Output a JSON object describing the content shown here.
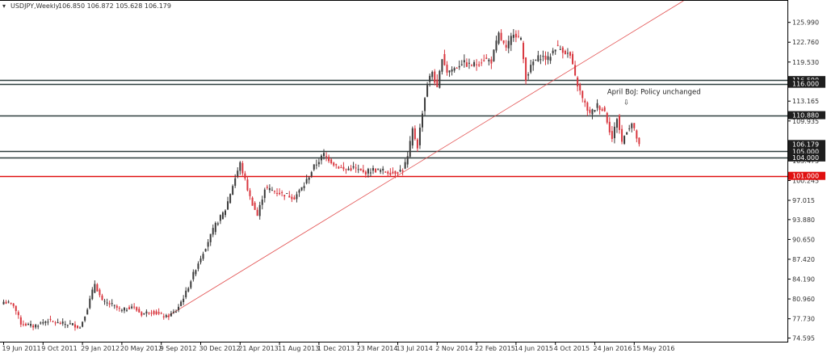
{
  "header": {
    "symbol": "USDJPY,Weekly",
    "ohlc_values": "106.850 106.872 105.628 106.179",
    "dropdown_glyph": "▾"
  },
  "colors": {
    "bull": "#3a3a3a",
    "bear": "#d9363e",
    "trendline": "#e25050",
    "level_line": "#2e3e3e",
    "support_red": "#e01010",
    "price_tag_bg": "#1e1e1e",
    "price_tag_text": "#ffffff"
  },
  "chart_data": {
    "type": "candlestick",
    "timeframe": "Weekly",
    "y_range": [
      74.0,
      129.5
    ],
    "y_ticks": [
      {
        "value": 125.99,
        "label": "125.990"
      },
      {
        "value": 122.76,
        "label": "122.760"
      },
      {
        "value": 119.53,
        "label": "119.530"
      },
      {
        "value": 113.165,
        "label": "113.165"
      },
      {
        "value": 109.935,
        "label": "109.935"
      },
      {
        "value": 103.475,
        "label": "103.475"
      },
      {
        "value": 100.245,
        "label": "100.245"
      },
      {
        "value": 97.015,
        "label": "97.015"
      },
      {
        "value": 93.88,
        "label": "93.880"
      },
      {
        "value": 90.65,
        "label": "90.650"
      },
      {
        "value": 87.42,
        "label": "87.420"
      },
      {
        "value": 84.19,
        "label": "84.190"
      },
      {
        "value": 80.96,
        "label": "80.960"
      },
      {
        "value": 77.73,
        "label": "77.730"
      },
      {
        "value": 74.595,
        "label": "74.595"
      }
    ],
    "x_ticks": [
      {
        "index": 0,
        "label": "19 Jun 2011"
      },
      {
        "index": 16,
        "label": "9 Oct 2011"
      },
      {
        "index": 32,
        "label": "29 Jan 2012"
      },
      {
        "index": 48,
        "label": "20 May 2012"
      },
      {
        "index": 64,
        "label": "9 Sep 2012"
      },
      {
        "index": 80,
        "label": "30 Dec 2012"
      },
      {
        "index": 96,
        "label": "21 Apr 2013"
      },
      {
        "index": 112,
        "label": "11 Aug 2013"
      },
      {
        "index": 128,
        "label": "1 Dec 2013"
      },
      {
        "index": 144,
        "label": "23 Mar 2014"
      },
      {
        "index": 160,
        "label": "13 Jul 2014"
      },
      {
        "index": 176,
        "label": "2 Nov 2014"
      },
      {
        "index": 192,
        "label": "22 Feb 2015"
      },
      {
        "index": 208,
        "label": "14 Jun 2015"
      },
      {
        "index": 224,
        "label": "4 Oct 2015"
      },
      {
        "index": 240,
        "label": "24 Jan 2016"
      },
      {
        "index": 256,
        "label": "15 May 2016"
      }
    ],
    "bar_count": 259,
    "close_path": [
      [
        0,
        80.5
      ],
      [
        4,
        80.0
      ],
      [
        7,
        77.0
      ],
      [
        12,
        76.5
      ],
      [
        18,
        77.5
      ],
      [
        22,
        77.0
      ],
      [
        28,
        76.8
      ],
      [
        31,
        76.3
      ],
      [
        34,
        79.5
      ],
      [
        37,
        83.5
      ],
      [
        40,
        80.5
      ],
      [
        44,
        80.0
      ],
      [
        48,
        79.0
      ],
      [
        52,
        79.8
      ],
      [
        56,
        78.5
      ],
      [
        60,
        79.0
      ],
      [
        64,
        78.3
      ],
      [
        66,
        78.0
      ],
      [
        70,
        79.0
      ],
      [
        74,
        82.0
      ],
      [
        78,
        86.0
      ],
      [
        82,
        89.5
      ],
      [
        86,
        93.0
      ],
      [
        90,
        95.5
      ],
      [
        93,
        99.5
      ],
      [
        96,
        103.0
      ],
      [
        100,
        97.5
      ],
      [
        103,
        94.5
      ],
      [
        106,
        99.0
      ],
      [
        110,
        98.5
      ],
      [
        114,
        98.0
      ],
      [
        118,
        97.5
      ],
      [
        122,
        99.5
      ],
      [
        126,
        102.5
      ],
      [
        130,
        104.5
      ],
      [
        134,
        103.0
      ],
      [
        138,
        102.0
      ],
      [
        142,
        102.3
      ],
      [
        146,
        101.5
      ],
      [
        150,
        102.0
      ],
      [
        154,
        101.8
      ],
      [
        158,
        101.5
      ],
      [
        162,
        102.0
      ],
      [
        164,
        104.0
      ],
      [
        166,
        108.5
      ],
      [
        168,
        105.8
      ],
      [
        170,
        111.5
      ],
      [
        172,
        116.0
      ],
      [
        174,
        118.0
      ],
      [
        176,
        115.0
      ],
      [
        178,
        120.5
      ],
      [
        180,
        118.0
      ],
      [
        183,
        118.5
      ],
      [
        186,
        119.5
      ],
      [
        189,
        119.0
      ],
      [
        192,
        119.2
      ],
      [
        195,
        120.0
      ],
      [
        198,
        119.7
      ],
      [
        201,
        124.0
      ],
      [
        204,
        121.5
      ],
      [
        207,
        124.5
      ],
      [
        210,
        123.0
      ],
      [
        212,
        117.0
      ],
      [
        215,
        119.5
      ],
      [
        218,
        120.5
      ],
      [
        221,
        120.0
      ],
      [
        224,
        122.0
      ],
      [
        227,
        121.5
      ],
      [
        230,
        120.5
      ],
      [
        232,
        117.0
      ],
      [
        235,
        113.5
      ],
      [
        238,
        111.0
      ],
      [
        241,
        112.5
      ],
      [
        244,
        111.5
      ],
      [
        247,
        107.0
      ],
      [
        249,
        110.5
      ],
      [
        251,
        106.5
      ],
      [
        253,
        108.5
      ],
      [
        255,
        109.5
      ],
      [
        257,
        107.2
      ],
      [
        258,
        106.179
      ]
    ],
    "horizontal_levels": [
      {
        "value": 116.59,
        "label": "116.590",
        "style": "level"
      },
      {
        "value": 116.0,
        "label": "116.000",
        "style": "level"
      },
      {
        "value": 110.88,
        "label": "110.880",
        "style": "level"
      },
      {
        "value": 105.0,
        "label": "105.000",
        "style": "level"
      },
      {
        "value": 104.0,
        "label": "104.000",
        "style": "level"
      },
      {
        "value": 101.0,
        "label": "101.000",
        "style": "support"
      }
    ],
    "current_price": {
      "value": 106.179,
      "label": "106.179"
    },
    "trendline": {
      "from": [
        66,
        78.0
      ],
      "to": [
        276,
        129.5
      ]
    },
    "annotation": {
      "text": "April BoJ: Policy unchanged",
      "index": 247,
      "value": 113.9,
      "arrow_glyph": "⇩"
    }
  }
}
